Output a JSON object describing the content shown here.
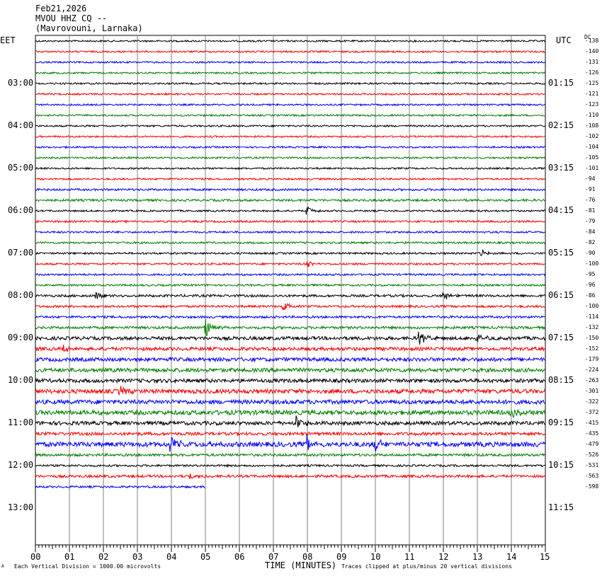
{
  "header": {
    "date": "Feb21,2026",
    "station": "MVOU HHZ CQ --",
    "location": "(Mavrovouni, Larnaka)"
  },
  "axes": {
    "left_tz": "EET",
    "right_tz": "UTC",
    "dc_label": "DC",
    "xlabel": "TIME (MINUTES)",
    "left_hours": [
      "03:00",
      "04:00",
      "05:00",
      "06:00",
      "07:00",
      "08:00",
      "09:00",
      "10:00",
      "11:00",
      "12:00",
      "13:00"
    ],
    "right_hours": [
      "01:15",
      "02:15",
      "03:15",
      "04:15",
      "05:15",
      "06:15",
      "07:15",
      "08:15",
      "09:15",
      "10:15",
      "11:15"
    ],
    "x_ticks": [
      "00",
      "01",
      "02",
      "03",
      "04",
      "05",
      "06",
      "07",
      "08",
      "09",
      "10",
      "11",
      "12",
      "13",
      "14",
      "15"
    ]
  },
  "footer": {
    "scale_note": "Each Vertical Division = 1000.00 microvolts",
    "clip_note": "Traces clipped at plus/minus 20 vertical divisions",
    "corner_mark": "A"
  },
  "colors": {
    "cycle": [
      "#000000",
      "#ff0000",
      "#0000ff",
      "#008000"
    ],
    "grid": "#808080"
  },
  "chart_data": {
    "type": "line",
    "title": "MVOU HHZ CQ --",
    "xlabel": "TIME (MINUTES)",
    "xlim": [
      0,
      15
    ],
    "trace_minutes": 15,
    "traces_per_hour": 4,
    "dc_offsets": [
      "-138",
      "-140",
      "-131",
      "-126",
      "-125",
      "-121",
      "-123",
      "-110",
      "-108",
      "-102",
      "-104",
      "-105",
      "-101",
      "-94",
      "-91",
      "-76",
      "-81",
      "-79",
      "-84",
      "-82",
      "-90",
      "-100",
      "-95",
      "-96",
      "-86",
      "-100",
      "-114",
      "-132",
      "-150",
      "-152",
      "-179",
      "-224",
      "-263",
      "-301",
      "-322",
      "-372",
      "-415",
      "-435",
      "-479",
      "-526",
      "-531",
      "-563",
      "-598"
    ],
    "last_trace_end_minute": 5.0,
    "noise_level": [
      1,
      1,
      1,
      1,
      1,
      1,
      1,
      1,
      1,
      1,
      1,
      1,
      1,
      1,
      1.2,
      1.3,
      1,
      1.1,
      1.1,
      1.1,
      1.1,
      1.1,
      1.1,
      1.1,
      1.4,
      1.3,
      1.3,
      1.5,
      2,
      2,
      2.2,
      2.3,
      2.2,
      2.5,
      2.5,
      2.6,
      2.2,
      1.8,
      2.8,
      1.5,
      1.2,
      1.5,
      1.2
    ],
    "events": [
      {
        "trace": 16,
        "minute": 8.0,
        "amp": 6
      },
      {
        "trace": 20,
        "minute": 13.1,
        "amp": 6
      },
      {
        "trace": 21,
        "minute": 8.0,
        "amp": 5
      },
      {
        "trace": 24,
        "minute": 1.8,
        "amp": 5
      },
      {
        "trace": 24,
        "minute": 12.0,
        "amp": 8
      },
      {
        "trace": 25,
        "minute": 7.3,
        "amp": 8
      },
      {
        "trace": 27,
        "minute": 5.0,
        "amp": 16
      },
      {
        "trace": 28,
        "minute": 11.3,
        "amp": 10
      },
      {
        "trace": 28,
        "minute": 13.0,
        "amp": 7
      },
      {
        "trace": 29,
        "minute": 0.8,
        "amp": 6
      },
      {
        "trace": 33,
        "minute": 2.5,
        "amp": 7
      },
      {
        "trace": 35,
        "minute": 14.0,
        "amp": 6
      },
      {
        "trace": 36,
        "minute": 7.7,
        "amp": 10
      },
      {
        "trace": 38,
        "minute": 4.0,
        "amp": 12
      },
      {
        "trace": 38,
        "minute": 8.0,
        "amp": 12
      },
      {
        "trace": 38,
        "minute": 10.0,
        "amp": 10
      },
      {
        "trace": 41,
        "minute": 4.5,
        "amp": 6
      }
    ]
  }
}
